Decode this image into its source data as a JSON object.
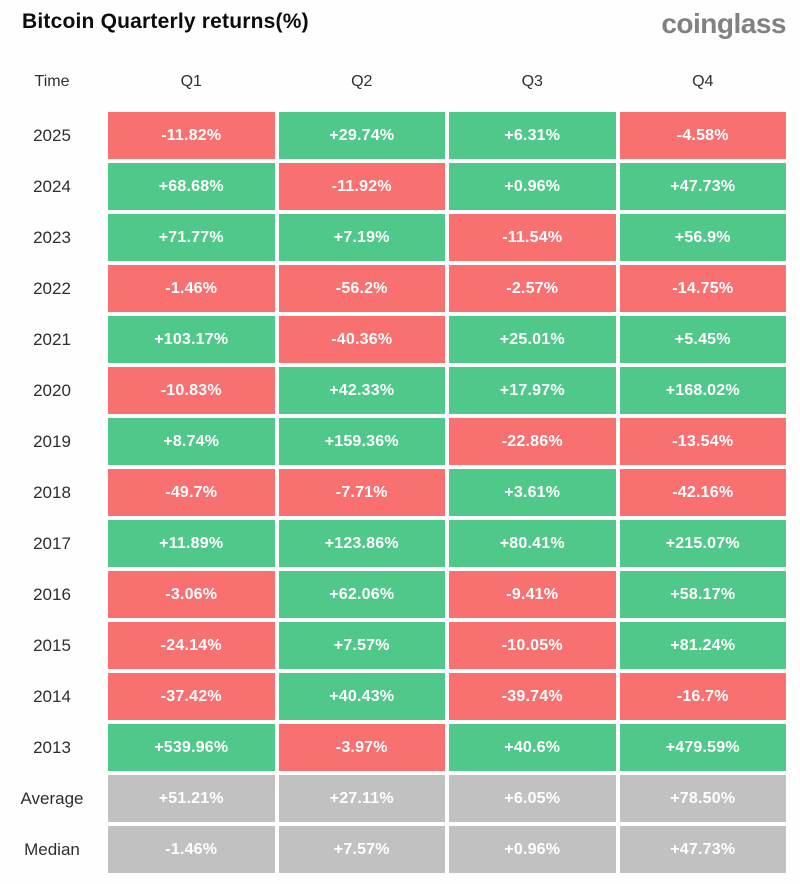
{
  "header": {
    "title": "Bitcoin Quarterly returns(%)",
    "logo": "coinglass"
  },
  "colors": {
    "green": "#4fc88a",
    "red": "#f87070",
    "gray": "#c1c1c1",
    "cell_text": "#ffffff",
    "label_text": "#2e2e2e"
  },
  "table": {
    "columns": [
      "Time",
      "Q1",
      "Q2",
      "Q3",
      "Q4"
    ],
    "rows": [
      {
        "label": "2025",
        "cells": [
          {
            "text": "-11.82%",
            "bg": "red"
          },
          {
            "text": "+29.74%",
            "bg": "green"
          },
          {
            "text": "+6.31%",
            "bg": "green"
          },
          {
            "text": "-4.58%",
            "bg": "red"
          }
        ]
      },
      {
        "label": "2024",
        "cells": [
          {
            "text": "+68.68%",
            "bg": "green"
          },
          {
            "text": "-11.92%",
            "bg": "red"
          },
          {
            "text": "+0.96%",
            "bg": "green"
          },
          {
            "text": "+47.73%",
            "bg": "green"
          }
        ]
      },
      {
        "label": "2023",
        "cells": [
          {
            "text": "+71.77%",
            "bg": "green"
          },
          {
            "text": "+7.19%",
            "bg": "green"
          },
          {
            "text": "-11.54%",
            "bg": "red"
          },
          {
            "text": "+56.9%",
            "bg": "green"
          }
        ]
      },
      {
        "label": "2022",
        "cells": [
          {
            "text": "-1.46%",
            "bg": "red"
          },
          {
            "text": "-56.2%",
            "bg": "red"
          },
          {
            "text": "-2.57%",
            "bg": "red"
          },
          {
            "text": "-14.75%",
            "bg": "red"
          }
        ]
      },
      {
        "label": "2021",
        "cells": [
          {
            "text": "+103.17%",
            "bg": "green"
          },
          {
            "text": "-40.36%",
            "bg": "red"
          },
          {
            "text": "+25.01%",
            "bg": "green"
          },
          {
            "text": "+5.45%",
            "bg": "green"
          }
        ]
      },
      {
        "label": "2020",
        "cells": [
          {
            "text": "-10.83%",
            "bg": "red"
          },
          {
            "text": "+42.33%",
            "bg": "green"
          },
          {
            "text": "+17.97%",
            "bg": "green"
          },
          {
            "text": "+168.02%",
            "bg": "green"
          }
        ]
      },
      {
        "label": "2019",
        "cells": [
          {
            "text": "+8.74%",
            "bg": "green"
          },
          {
            "text": "+159.36%",
            "bg": "green"
          },
          {
            "text": "-22.86%",
            "bg": "red"
          },
          {
            "text": "-13.54%",
            "bg": "red"
          }
        ]
      },
      {
        "label": "2018",
        "cells": [
          {
            "text": "-49.7%",
            "bg": "red"
          },
          {
            "text": "-7.71%",
            "bg": "red"
          },
          {
            "text": "+3.61%",
            "bg": "green"
          },
          {
            "text": "-42.16%",
            "bg": "red"
          }
        ]
      },
      {
        "label": "2017",
        "cells": [
          {
            "text": "+11.89%",
            "bg": "green"
          },
          {
            "text": "+123.86%",
            "bg": "green"
          },
          {
            "text": "+80.41%",
            "bg": "green"
          },
          {
            "text": "+215.07%",
            "bg": "green"
          }
        ]
      },
      {
        "label": "2016",
        "cells": [
          {
            "text": "-3.06%",
            "bg": "red"
          },
          {
            "text": "+62.06%",
            "bg": "green"
          },
          {
            "text": "-9.41%",
            "bg": "red"
          },
          {
            "text": "+58.17%",
            "bg": "green"
          }
        ]
      },
      {
        "label": "2015",
        "cells": [
          {
            "text": "-24.14%",
            "bg": "red"
          },
          {
            "text": "+7.57%",
            "bg": "green"
          },
          {
            "text": "-10.05%",
            "bg": "red"
          },
          {
            "text": "+81.24%",
            "bg": "green"
          }
        ]
      },
      {
        "label": "2014",
        "cells": [
          {
            "text": "-37.42%",
            "bg": "red"
          },
          {
            "text": "+40.43%",
            "bg": "green"
          },
          {
            "text": "-39.74%",
            "bg": "red"
          },
          {
            "text": "-16.7%",
            "bg": "red"
          }
        ]
      },
      {
        "label": "2013",
        "cells": [
          {
            "text": "+539.96%",
            "bg": "green"
          },
          {
            "text": "-3.97%",
            "bg": "red"
          },
          {
            "text": "+40.6%",
            "bg": "green"
          },
          {
            "text": "+479.59%",
            "bg": "green"
          }
        ]
      },
      {
        "label": "Average",
        "cells": [
          {
            "text": "+51.21%",
            "bg": "gray"
          },
          {
            "text": "+27.11%",
            "bg": "gray"
          },
          {
            "text": "+6.05%",
            "bg": "gray"
          },
          {
            "text": "+78.50%",
            "bg": "gray"
          }
        ]
      },
      {
        "label": "Median",
        "cells": [
          {
            "text": "-1.46%",
            "bg": "gray"
          },
          {
            "text": "+7.57%",
            "bg": "gray"
          },
          {
            "text": "+0.96%",
            "bg": "gray"
          },
          {
            "text": "+47.73%",
            "bg": "gray"
          }
        ]
      }
    ]
  },
  "chart_data": {
    "type": "table",
    "title": "Bitcoin Quarterly returns(%)",
    "categories": [
      "Q1",
      "Q2",
      "Q3",
      "Q4"
    ],
    "series": [
      {
        "name": "2025",
        "values": [
          -11.82,
          29.74,
          6.31,
          -4.58
        ]
      },
      {
        "name": "2024",
        "values": [
          68.68,
          -11.92,
          0.96,
          47.73
        ]
      },
      {
        "name": "2023",
        "values": [
          71.77,
          7.19,
          -11.54,
          56.9
        ]
      },
      {
        "name": "2022",
        "values": [
          -1.46,
          -56.2,
          -2.57,
          -14.75
        ]
      },
      {
        "name": "2021",
        "values": [
          103.17,
          -40.36,
          25.01,
          5.45
        ]
      },
      {
        "name": "2020",
        "values": [
          -10.83,
          42.33,
          17.97,
          168.02
        ]
      },
      {
        "name": "2019",
        "values": [
          8.74,
          159.36,
          -22.86,
          -13.54
        ]
      },
      {
        "name": "2018",
        "values": [
          -49.7,
          -7.71,
          3.61,
          -42.16
        ]
      },
      {
        "name": "2017",
        "values": [
          11.89,
          123.86,
          80.41,
          215.07
        ]
      },
      {
        "name": "2016",
        "values": [
          -3.06,
          62.06,
          -9.41,
          58.17
        ]
      },
      {
        "name": "2015",
        "values": [
          -24.14,
          7.57,
          -10.05,
          81.24
        ]
      },
      {
        "name": "2014",
        "values": [
          -37.42,
          40.43,
          -39.74,
          -16.7
        ]
      },
      {
        "name": "2013",
        "values": [
          539.96,
          -3.97,
          40.6,
          479.59
        ]
      },
      {
        "name": "Average",
        "values": [
          51.21,
          27.11,
          6.05,
          78.5
        ]
      },
      {
        "name": "Median",
        "values": [
          -1.46,
          7.57,
          0.96,
          47.73
        ]
      }
    ],
    "value_colors": {
      "positive": "green",
      "negative": "red",
      "summary": "gray"
    },
    "legend_position": "none",
    "grid": false
  }
}
